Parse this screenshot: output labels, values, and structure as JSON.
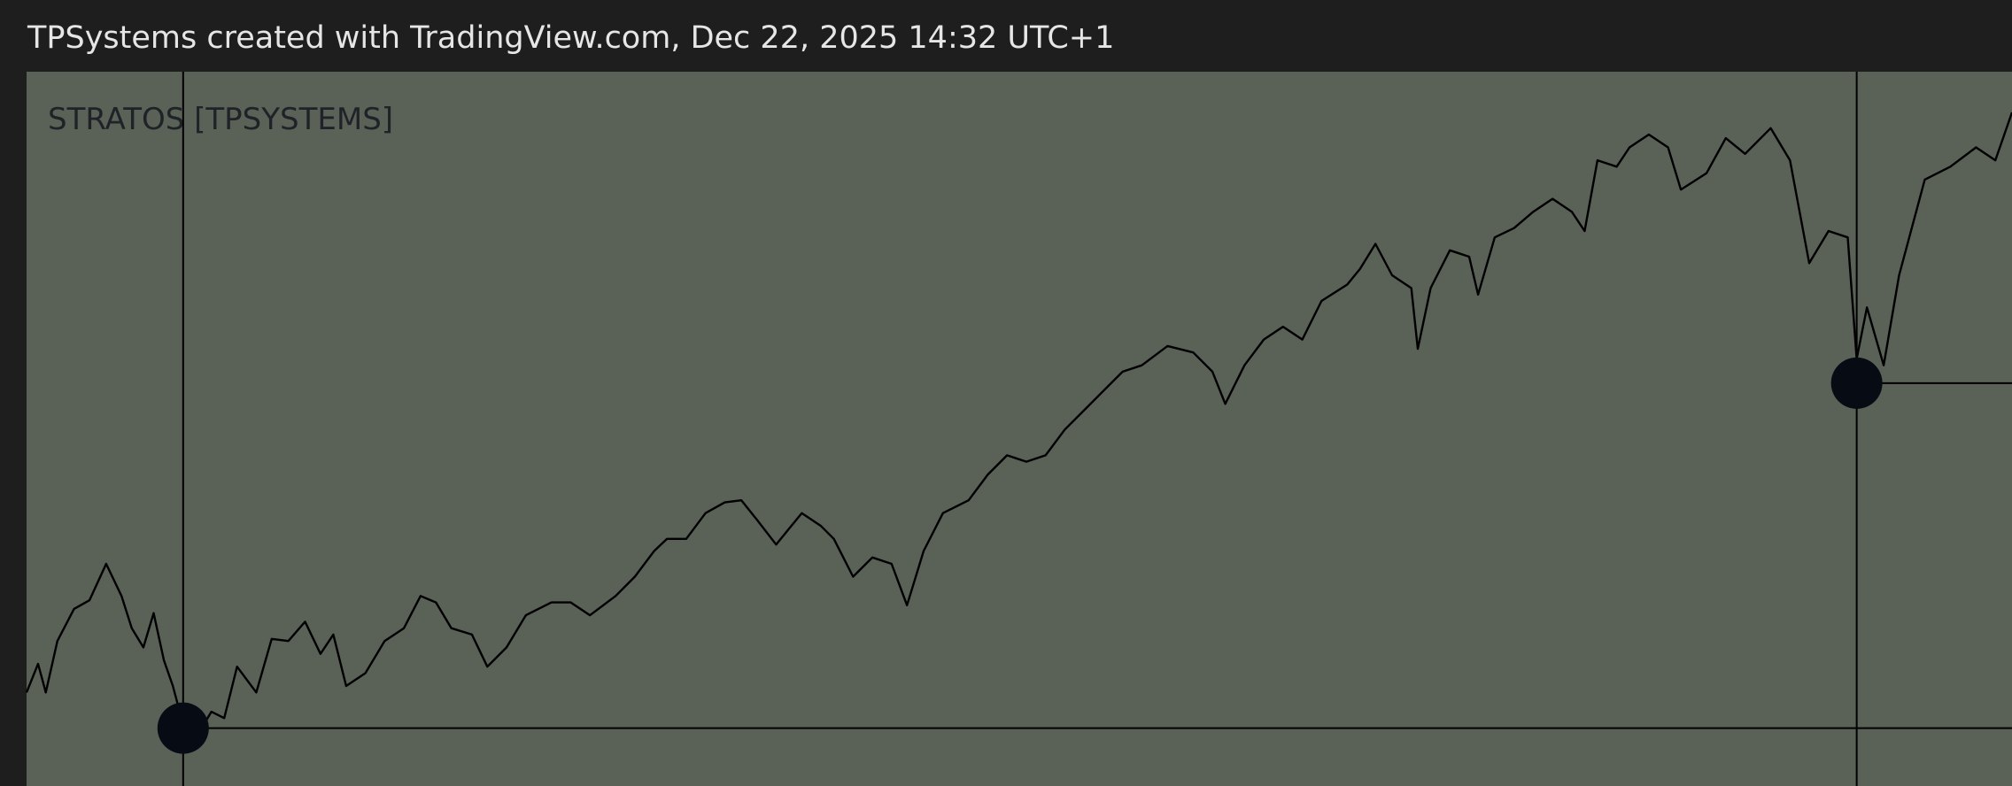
{
  "chart_data": {
    "type": "line",
    "title": "TPSystems created with TradingView.com, Dec 22, 2025 14:32 UTC+1",
    "subtitle": "STRATOS [TPSYSTEMS]",
    "x": [
      0,
      9,
      15,
      24,
      37,
      49,
      62,
      74,
      82,
      91,
      99,
      107,
      114,
      122,
      134,
      144,
      154,
      164,
      179,
      191,
      204,
      217,
      229,
      239,
      249,
      264,
      279,
      294,
      307,
      319,
      331,
      347,
      359,
      374,
      389,
      409,
      424,
      439,
      459,
      474,
      489,
      499,
      514,
      529,
      544,
      557,
      569,
      584,
      604,
      619,
      629,
      644,
      659,
      674,
      686,
      699,
      714,
      734,
      749,
      764,
      779,
      794,
      809,
      824,
      839,
      854,
      869,
      889,
      909,
      924,
      934,
      949,
      964,
      979,
      994,
      1009,
      1029,
      1039,
      1051,
      1064,
      1079,
      1084,
      1094,
      1109,
      1124,
      1131,
      1144,
      1159,
      1174,
      1189,
      1204,
      1214,
      1224,
      1239,
      1249,
      1264,
      1279,
      1289,
      1309,
      1324,
      1339,
      1359,
      1374,
      1389,
      1404,
      1419,
      1426,
      1434,
      1447,
      1459,
      1479,
      1499,
      1519,
      1534,
      1547
    ],
    "series": [
      {
        "name": "STRATOS",
        "color": "#000000",
        "values": [
          13.1,
          17.1,
          13.1,
          20.3,
          24.8,
          26.0,
          31.1,
          26.6,
          22.1,
          19.4,
          24.2,
          17.6,
          14.0,
          8.6,
          7.4,
          10.4,
          9.5,
          16.7,
          13.1,
          20.6,
          20.3,
          23.0,
          18.5,
          21.2,
          14.0,
          15.8,
          20.3,
          22.1,
          26.6,
          25.7,
          22.1,
          21.2,
          16.7,
          19.4,
          23.9,
          25.7,
          25.7,
          23.9,
          26.6,
          29.3,
          32.9,
          34.6,
          34.6,
          38.2,
          39.7,
          40.0,
          37.3,
          33.8,
          38.2,
          36.4,
          34.6,
          29.3,
          32.0,
          31.1,
          25.3,
          32.9,
          38.2,
          40.0,
          43.6,
          46.3,
          45.4,
          46.3,
          49.9,
          52.6,
          55.3,
          58.0,
          58.9,
          61.6,
          60.7,
          58.0,
          53.5,
          58.9,
          62.5,
          64.3,
          62.5,
          67.9,
          70.2,
          72.4,
          75.9,
          71.5,
          69.7,
          61.2,
          69.7,
          75.0,
          74.1,
          68.8,
          76.8,
          78.1,
          80.4,
          82.2,
          80.4,
          77.7,
          87.6,
          86.7,
          89.4,
          91.2,
          89.4,
          83.5,
          85.8,
          90.7,
          88.5,
          92.1,
          87.6,
          73.2,
          77.7,
          76.8,
          59.8,
          67.0,
          58.9,
          71.5,
          84.9,
          86.7,
          89.4,
          87.6,
          94.3
        ]
      }
    ],
    "markers": [
      {
        "x": 122,
        "y": 8.1
      },
      {
        "x": 1426,
        "y": 56.4
      }
    ],
    "marker_color": "#070b14",
    "xlim": [
      0,
      1547
    ],
    "ylim": [
      0,
      100
    ],
    "grid": false
  }
}
